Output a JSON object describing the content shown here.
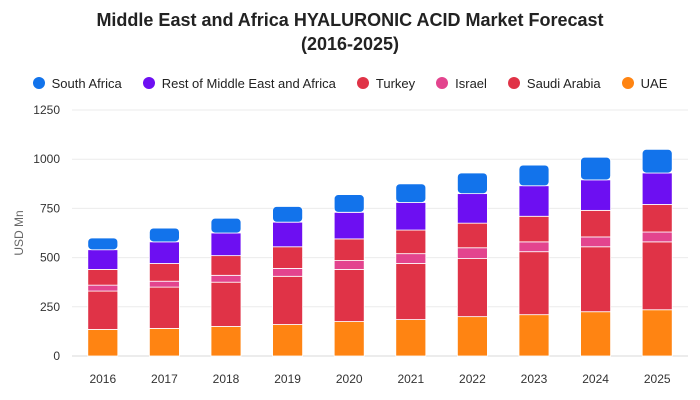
{
  "chart_data": {
    "type": "bar",
    "stacked": true,
    "title": "Middle East and Africa HYALURONIC ACID Market Forecast (2016-2025)",
    "xlabel": "",
    "ylabel": "USD Mn",
    "ylim": [
      0,
      1250
    ],
    "yticks": [
      "0",
      "250",
      "500",
      "750",
      "1000",
      "1250"
    ],
    "grid": "horizontal",
    "legend_position": "top",
    "categories": [
      "2016",
      "2017",
      "2018",
      "2019",
      "2020",
      "2021",
      "2022",
      "2023",
      "2024",
      "2025"
    ],
    "series": [
      {
        "name": "UAE",
        "color": "#ff8412",
        "values": [
          135,
          140,
          150,
          160,
          175,
          185,
          200,
          210,
          225,
          235
        ]
      },
      {
        "name": "Saudi Arabia",
        "color": "#e03347",
        "values": [
          195,
          210,
          225,
          245,
          265,
          285,
          295,
          320,
          330,
          345
        ]
      },
      {
        "name": "Israel",
        "color": "#e3448e",
        "values": [
          30,
          30,
          35,
          40,
          45,
          50,
          55,
          50,
          50,
          50
        ]
      },
      {
        "name": "Turkey",
        "color": "#e03347",
        "values": [
          80,
          90,
          100,
          110,
          110,
          120,
          125,
          130,
          135,
          140
        ]
      },
      {
        "name": "Rest of Middle East and Africa",
        "color": "#6d0ff2",
        "values": [
          100,
          110,
          115,
          125,
          135,
          140,
          150,
          155,
          155,
          160
        ]
      },
      {
        "name": "South Africa",
        "color": "#1273eb",
        "values": [
          60,
          70,
          75,
          80,
          90,
          95,
          105,
          105,
          115,
          120
        ]
      }
    ],
    "legend_order": [
      "South Africa",
      "Rest of Middle East and Africa",
      "Turkey",
      "Israel",
      "Saudi Arabia",
      "UAE"
    ]
  }
}
